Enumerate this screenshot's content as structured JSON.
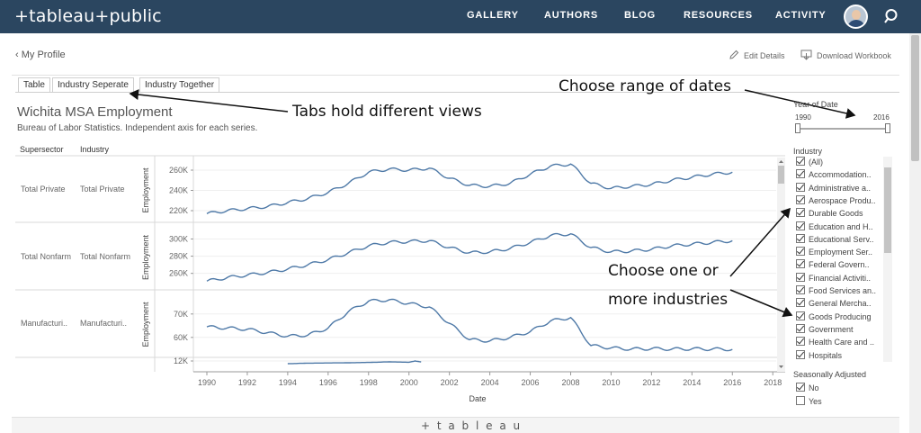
{
  "header": {
    "logo": "+tableau+public",
    "nav": [
      "GALLERY",
      "AUTHORS",
      "BLOG",
      "RESOURCES",
      "ACTIVITY"
    ]
  },
  "profile": {
    "back_label": "My Profile",
    "edit_label": "Edit Details",
    "download_label": "Download Workbook"
  },
  "tabs": [
    "Table",
    "Industry Seperate",
    "Industry Together"
  ],
  "viz": {
    "title": "Wichita MSA Employment",
    "subtitle": "Bureau of Labor Statistics. Independent axis for each series.",
    "col_headers": [
      "Supersector",
      "Industry"
    ],
    "rows": [
      {
        "supersector": "Total Private",
        "industry": "Total Private"
      },
      {
        "supersector": "Total Nonfarm",
        "industry": "Total Nonfarm"
      },
      {
        "supersector": "Manufacturi..",
        "industry": "Manufacturi.."
      }
    ]
  },
  "annotations": {
    "tabs_note": "Tabs hold different views",
    "dates_note": "Choose range of dates",
    "industries_note_1": "Choose one or",
    "industries_note_2": "more industries"
  },
  "date_filter": {
    "label": "Year of Date",
    "min": "1990",
    "max": "2016"
  },
  "industry_filter": {
    "label": "Industry",
    "items": [
      "(All)",
      "Accommodation..",
      "Administrative a..",
      "Aerospace Produ..",
      "Durable Goods",
      "Education and H..",
      "Educational Serv..",
      "Employment Ser..",
      "Federal Govern..",
      "Financial Activiti..",
      "Food Services an..",
      "General Mercha..",
      "Goods Producing",
      "Government",
      "Health Care and ..",
      "Hospitals"
    ]
  },
  "seasonal_filter": {
    "label": "Seasonally Adjusted",
    "items": [
      {
        "label": "No",
        "checked": true
      },
      {
        "label": "Yes",
        "checked": false
      }
    ]
  },
  "footer": {
    "logo": "+ t a b l e a u"
  },
  "chart_data": {
    "type": "line",
    "xlabel": "Date",
    "x_ticks": [
      "1990",
      "1992",
      "1994",
      "1996",
      "1998",
      "2000",
      "2002",
      "2004",
      "2006",
      "2008",
      "2010",
      "2012",
      "2014",
      "2016",
      "2018"
    ],
    "series": [
      {
        "name": "Total Private",
        "ylabel": "Employment",
        "y_ticks": [
          "220K",
          "240K",
          "260K"
        ],
        "ylim": [
          212000,
          268000
        ],
        "x": [
          1990,
          1991,
          1992,
          1993,
          1994,
          1995,
          1996,
          1997,
          1998,
          1999,
          2000,
          2001,
          2002,
          2003,
          2004,
          2005,
          2006,
          2007,
          2008,
          2009,
          2010,
          2011,
          2012,
          2013,
          2014,
          2015,
          2016
        ],
        "values": [
          217000,
          220000,
          222000,
          224000,
          228000,
          232000,
          238000,
          247000,
          258000,
          261000,
          260000,
          262000,
          252000,
          245000,
          244000,
          247000,
          256000,
          264000,
          266000,
          247000,
          242000,
          244000,
          246000,
          250000,
          253000,
          256000,
          258000
        ]
      },
      {
        "name": "Total Nonfarm",
        "ylabel": "Employment",
        "y_ticks": [
          "260K",
          "280K",
          "300K"
        ],
        "ylim": [
          245000,
          312000
        ],
        "x": [
          1990,
          1991,
          1992,
          1993,
          1994,
          1995,
          1996,
          1997,
          1998,
          1999,
          2000,
          2001,
          2002,
          2003,
          2004,
          2005,
          2006,
          2007,
          2008,
          2009,
          2010,
          2011,
          2012,
          2013,
          2014,
          2015,
          2016
        ],
        "values": [
          251000,
          255000,
          258000,
          261000,
          265000,
          270000,
          276000,
          284000,
          292000,
          296000,
          297000,
          298000,
          290000,
          284000,
          285000,
          289000,
          296000,
          304000,
          306000,
          290000,
          285000,
          286000,
          288000,
          292000,
          294000,
          296000,
          298000
        ]
      },
      {
        "name": "Manufacturi..",
        "ylabel": "Employment",
        "y_ticks": [
          "60K",
          "70K"
        ],
        "ylim": [
          53000,
          78000
        ],
        "x": [
          1990,
          1991,
          1992,
          1993,
          1994,
          1995,
          1996,
          1997,
          1998,
          1999,
          2000,
          2001,
          2002,
          2003,
          2004,
          2005,
          2006,
          2007,
          2008,
          2009,
          2010,
          2011,
          2012,
          2013,
          2014,
          2015,
          2016
        ],
        "values": [
          64500,
          64000,
          63500,
          62000,
          60500,
          61000,
          64000,
          71000,
          75500,
          76000,
          74500,
          73000,
          66000,
          59000,
          58500,
          60000,
          62500,
          67000,
          68500,
          56500,
          55500,
          55000,
          55200,
          55000,
          55100,
          55000,
          54900
        ]
      },
      {
        "name": "",
        "ylabel": "",
        "y_ticks": [
          "12K"
        ],
        "ylim": [
          0,
          13000
        ],
        "x": [
          1994,
          1995,
          1996,
          1997,
          1998,
          1999,
          2000,
          2000.3,
          2000.6
        ],
        "values": [
          9000,
          9600,
          9800,
          10000,
          10400,
          11000,
          10600,
          12000,
          11000
        ]
      }
    ]
  }
}
